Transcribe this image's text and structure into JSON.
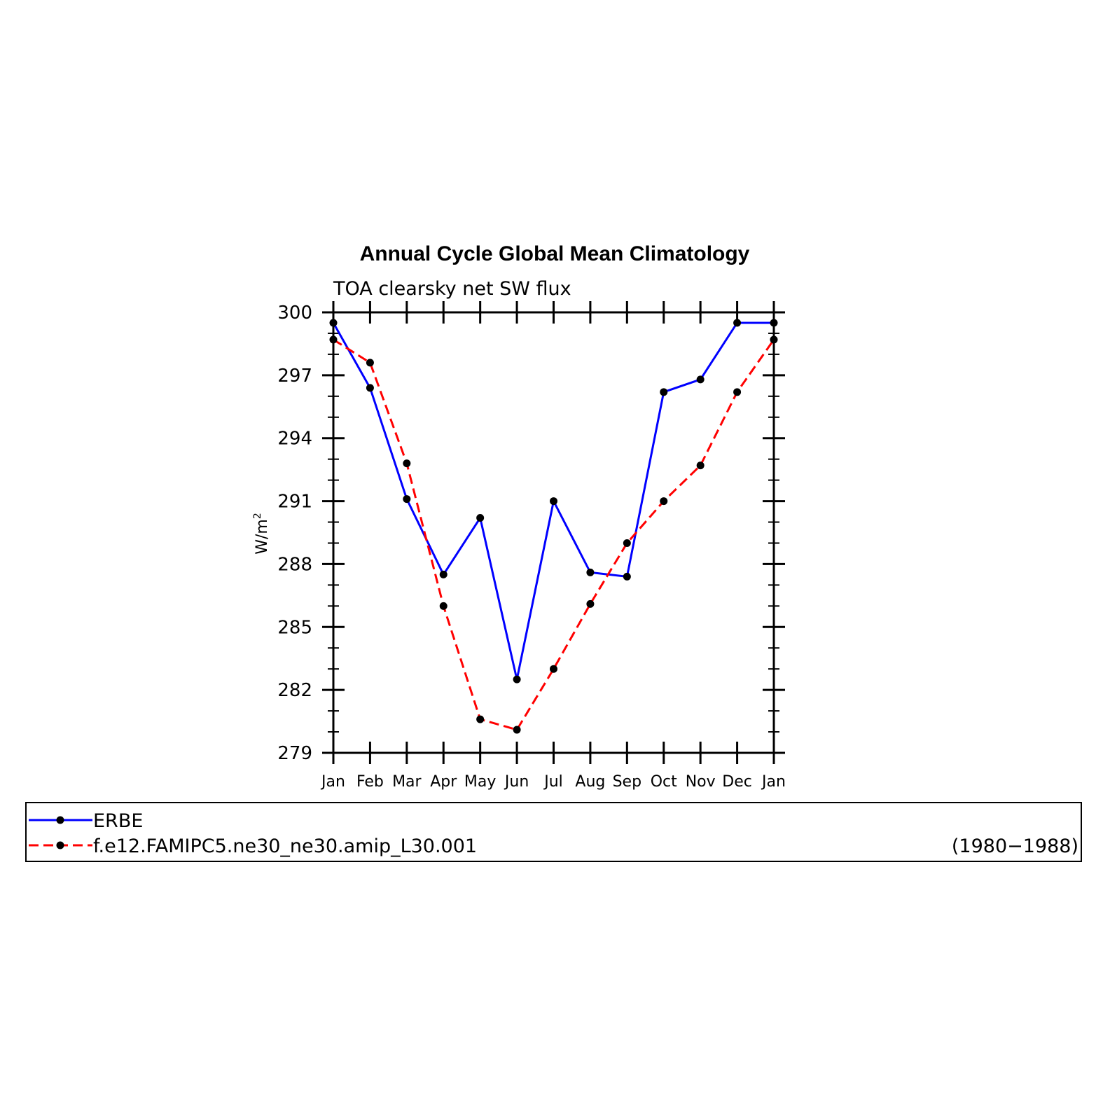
{
  "chart_data": {
    "type": "line",
    "title": "Annual Cycle Global Mean Climatology",
    "subtitle": "TOA clearsky net SW flux",
    "ylabel": "W/m",
    "ylabel_superscript": "2",
    "ylim": [
      279,
      300
    ],
    "yticks": [
      "300",
      "297",
      "294",
      "291",
      "288",
      "285",
      "282",
      "279"
    ],
    "categories": [
      "Jan",
      "Feb",
      "Mar",
      "Apr",
      "May",
      "Jun",
      "Jul",
      "Aug",
      "Sep",
      "Oct",
      "Nov",
      "Dec",
      "Jan"
    ],
    "series": [
      {
        "name": "ERBE",
        "color": "#0000ff",
        "dash": "solid",
        "values": [
          299.5,
          296.4,
          291.1,
          287.5,
          290.2,
          282.5,
          291.0,
          287.6,
          287.4,
          296.2,
          296.8,
          299.5,
          299.5
        ]
      },
      {
        "name": "f.e12.FAMIPC5.ne30_ne30.amip_L30.001",
        "color": "#ff0000",
        "dash": "dashed",
        "values": [
          298.7,
          297.6,
          292.8,
          286.0,
          280.6,
          280.1,
          283.0,
          286.1,
          289.0,
          291.0,
          292.7,
          296.2,
          298.7
        ]
      }
    ],
    "legend_period": "(1980−1988)",
    "marker_color": "#000000"
  }
}
